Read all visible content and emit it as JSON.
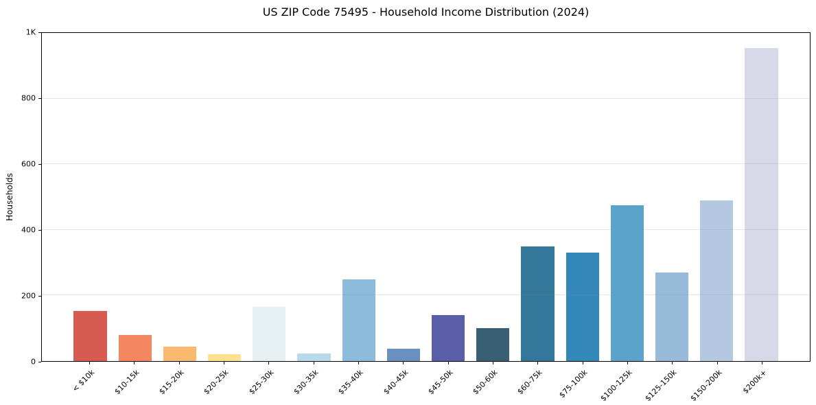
{
  "figure": {
    "background_color": "#ffffff",
    "axis_color": "#000000",
    "gridline_color": "#e8e8ec"
  },
  "chart_data": {
    "type": "bar",
    "title": "US ZIP Code 75495 - Household Income Distribution (2024)",
    "xlabel": "",
    "ylabel": "Households",
    "ylim": [
      0,
      1000
    ],
    "grid": "horizontal",
    "legend": "none",
    "categories": [
      "< $10k",
      "$10-15k",
      "$15-20k",
      "$20-25k",
      "$25-30k",
      "$30-35k",
      "$35-40k",
      "$40-45k",
      "$45-50k",
      "$50-60k",
      "$60-75k",
      "$75-100k",
      "$100-125k",
      "$125-150k",
      "$150-200k",
      "$200k+"
    ],
    "values": [
      152,
      80,
      45,
      20,
      165,
      24,
      248,
      38,
      140,
      100,
      350,
      330,
      475,
      270,
      490,
      955
    ],
    "bar_colors": [
      "#d65c52",
      "#f4875f",
      "#f9ba70",
      "#fde090",
      "#e7f1f3",
      "#b7d9e9",
      "#8cbbdb",
      "#6890c0",
      "#5a5ea9",
      "#385f74",
      "#33789b",
      "#3487b9",
      "#5ba3cb",
      "#96bad8",
      "#b5c8e1",
      "#d7d9e8"
    ],
    "yticks": {
      "values": [
        0,
        200,
        400,
        600,
        800,
        1000
      ],
      "labels": [
        "0",
        "200",
        "400",
        "600",
        "800",
        "1K"
      ]
    }
  }
}
